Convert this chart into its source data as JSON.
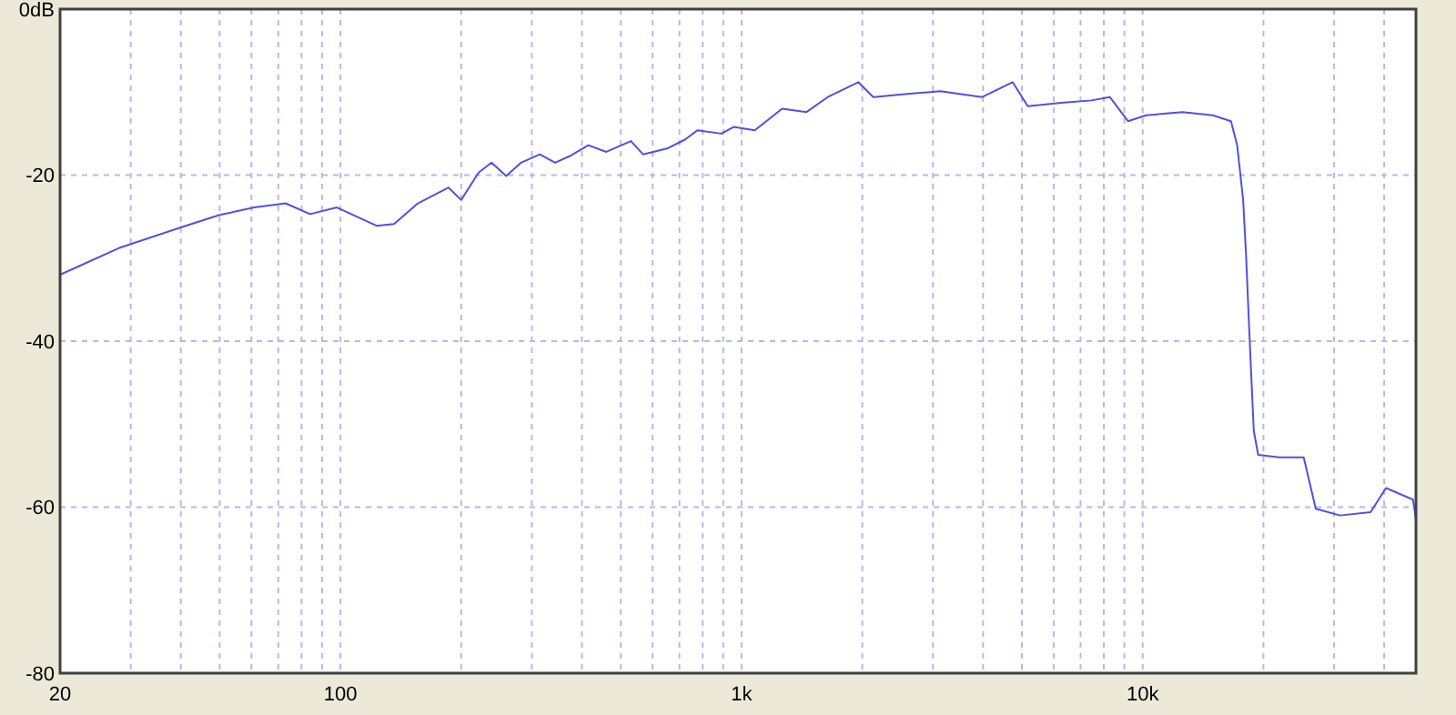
{
  "chart_data": {
    "type": "line",
    "log": "x",
    "grid": true,
    "line_style": "solid",
    "xlim": [
      20,
      48000
    ],
    "ylim": [
      -80,
      0
    ],
    "xticks": [
      20,
      {
        "value": 30,
        "label": null
      },
      {
        "value": 40,
        "label": null
      },
      {
        "value": 50,
        "label": null
      },
      {
        "value": 60,
        "label": null
      },
      {
        "value": 70,
        "label": null
      },
      {
        "value": 80,
        "label": null
      },
      {
        "value": 90,
        "label": null
      },
      100,
      {
        "value": 200,
        "label": null
      },
      {
        "value": 300,
        "label": null
      },
      {
        "value": 400,
        "label": null
      },
      {
        "value": 500,
        "label": null
      },
      {
        "value": 600,
        "label": null
      },
      {
        "value": 700,
        "label": null
      },
      {
        "value": 800,
        "label": null
      },
      {
        "value": 900,
        "label": null
      },
      {
        "value": 1000,
        "label": "1k"
      },
      {
        "value": 2000,
        "label": null
      },
      {
        "value": 3000,
        "label": null
      },
      {
        "value": 4000,
        "label": null
      },
      {
        "value": 5000,
        "label": null
      },
      {
        "value": 6000,
        "label": null
      },
      {
        "value": 7000,
        "label": null
      },
      {
        "value": 8000,
        "label": null
      },
      {
        "value": 9000,
        "label": null
      },
      {
        "value": 10000,
        "label": "10k"
      },
      {
        "value": 20000,
        "label": null
      },
      {
        "value": 30000,
        "label": null
      },
      {
        "value": 40000,
        "label": null
      }
    ],
    "yticks": [
      {
        "value": 0,
        "label": "0dB"
      },
      -20,
      -40,
      -60,
      -80
    ],
    "series": [
      {
        "color": "#5050e0",
        "x": [
          20,
          28,
          40,
          50,
          61,
          73,
          84,
          98,
          123,
          136,
          156,
          186,
          200,
          221,
          238,
          259,
          282,
          314,
          343,
          373,
          415,
          460,
          530,
          568,
          652,
          724,
          776,
          891,
          955,
          1079,
          1262,
          1452,
          1640,
          1955,
          2130,
          2625,
          3127,
          3980,
          4740,
          5170,
          6270,
          7450,
          8280,
          9190,
          10190,
          12560,
          14960,
          16600,
          17200,
          17800,
          18100,
          18450,
          18920,
          19400,
          21900,
          25200,
          27000,
          31050,
          37000,
          40400,
          47200,
          48000
        ],
        "values": [
          -32.0,
          -28.8,
          -26.3,
          -24.8,
          -23.9,
          -23.4,
          -24.7,
          -23.9,
          -26.1,
          -25.9,
          -23.4,
          -21.5,
          -23.0,
          -19.7,
          -18.5,
          -20.1,
          -18.5,
          -17.5,
          -18.5,
          -17.7,
          -16.4,
          -17.2,
          -15.9,
          -17.5,
          -16.8,
          -15.7,
          -14.6,
          -15.0,
          -14.2,
          -14.6,
          -12.0,
          -12.4,
          -10.6,
          -8.8,
          -10.6,
          -10.2,
          -9.9,
          -10.6,
          -8.8,
          -11.7,
          -11.3,
          -11.0,
          -10.6,
          -13.5,
          -12.8,
          -12.4,
          -12.8,
          -13.5,
          -16.4,
          -23.0,
          -29.6,
          -39.1,
          -50.8,
          -53.7,
          -54.0,
          -54.0,
          -60.2,
          -61.0,
          -60.6,
          -57.7,
          -59.1,
          -61.5
        ]
      }
    ]
  }
}
